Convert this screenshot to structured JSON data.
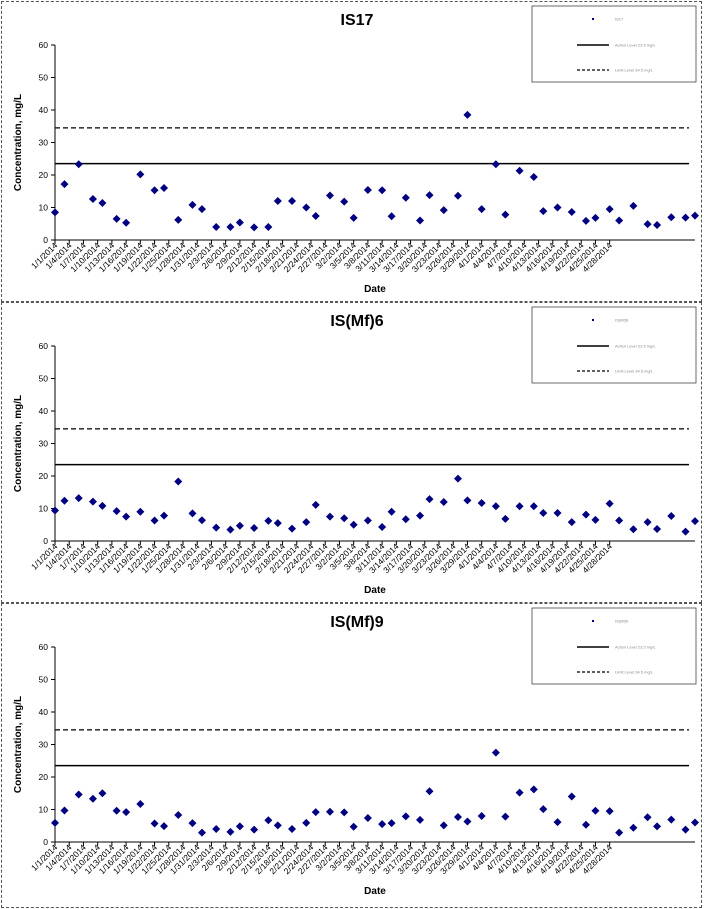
{
  "colors": {
    "marker": "#000080",
    "line": "#000000",
    "border": "#555555"
  },
  "chart_data": [
    {
      "type": "scatter",
      "title": "IS17",
      "xlabel": "Date",
      "ylabel": "Concentration, mg/L",
      "ylim": [
        0,
        60
      ],
      "yticks": [
        "0",
        "10",
        "20",
        "30",
        "40",
        "50",
        "60"
      ],
      "xticks": [
        "1/1/2014",
        "1/4/2014",
        "1/7/2014",
        "1/10/2014",
        "1/13/2014",
        "1/16/2014",
        "1/19/2014",
        "1/22/2014",
        "1/25/2014",
        "1/28/2014",
        "1/31/2014",
        "2/3/2014",
        "2/6/2014",
        "2/9/2014",
        "2/12/2014",
        "2/15/2014",
        "2/18/2014",
        "2/21/2014",
        "2/24/2014",
        "2/27/2014",
        "3/2/2014",
        "3/5/2014",
        "3/8/2014",
        "3/11/2014",
        "3/14/2014",
        "3/17/2014",
        "3/20/2014",
        "3/23/2014",
        "3/26/2014",
        "3/29/2014",
        "4/1/2014",
        "4/4/2014",
        "4/7/2014",
        "4/10/2014",
        "4/13/2014",
        "4/16/2014",
        "4/19/2014",
        "4/22/2014",
        "4/25/2014",
        "4/28/2014"
      ],
      "reference_lines": [
        {
          "y": 23.5,
          "style": "solid"
        },
        {
          "y": 34.5,
          "style": "dashed"
        }
      ],
      "legend": {
        "placement": "top-right",
        "entries": [
          "IS17",
          "Action Level 23.5 mg/L",
          "Limit Level 34.5 mg/L"
        ]
      },
      "series": [
        {
          "name": "IS17",
          "points": [
            [
              "1/1/2014",
              8.5
            ],
            [
              "1/3/2014",
              17.2
            ],
            [
              "1/6/2014",
              23.3
            ],
            [
              "1/9/2014",
              12.6
            ],
            [
              "1/11/2014",
              11.4
            ],
            [
              "1/14/2014",
              6.5
            ],
            [
              "1/16/2014",
              5.3
            ],
            [
              "1/19/2014",
              20.2
            ],
            [
              "1/22/2014",
              15.3
            ],
            [
              "1/24/2014",
              16.0
            ],
            [
              "1/27/2014",
              6.2
            ],
            [
              "1/30/2014",
              10.8
            ],
            [
              "2/1/2014",
              9.5
            ],
            [
              "2/4/2014",
              4.0
            ],
            [
              "2/7/2014",
              4.0
            ],
            [
              "2/9/2014",
              5.4
            ],
            [
              "2/12/2014",
              3.9
            ],
            [
              "2/15/2014",
              4.0
            ],
            [
              "2/17/2014",
              12.0
            ],
            [
              "2/20/2014",
              12.0
            ],
            [
              "2/23/2014",
              10.0
            ],
            [
              "2/25/2014",
              7.4
            ],
            [
              "2/28/2014",
              13.7
            ],
            [
              "3/3/2014",
              11.8
            ],
            [
              "3/5/2014",
              6.8
            ],
            [
              "3/8/2014",
              15.4
            ],
            [
              "3/11/2014",
              15.3
            ],
            [
              "3/13/2014",
              7.3
            ],
            [
              "3/16/2014",
              13.0
            ],
            [
              "3/19/2014",
              6.0
            ],
            [
              "3/21/2014",
              13.8
            ],
            [
              "3/24/2014",
              9.2
            ],
            [
              "3/27/2014",
              13.6
            ],
            [
              "3/29/2014",
              38.5
            ],
            [
              "4/1/2014",
              9.5
            ],
            [
              "4/4/2014",
              23.3
            ],
            [
              "4/6/2014",
              7.8
            ],
            [
              "4/9/2014",
              21.3
            ],
            [
              "4/12/2014",
              19.4
            ],
            [
              "4/14/2014",
              8.9
            ],
            [
              "4/17/2014",
              10.0
            ],
            [
              "4/20/2014",
              8.6
            ],
            [
              "4/23/2014",
              5.9
            ],
            [
              "4/25/2014",
              6.8
            ],
            [
              "4/28/2014",
              9.5
            ],
            [
              "4/30/2014",
              6.0
            ],
            [
              "5/3/2014",
              10.5
            ],
            [
              "5/6/2014",
              4.9
            ],
            [
              "5/8/2014",
              4.6
            ],
            [
              "5/11/2014",
              7.0
            ],
            [
              "5/14/2014",
              6.9
            ],
            [
              "5/16/2014",
              7.5
            ]
          ]
        }
      ]
    },
    {
      "type": "scatter",
      "title": "IS(Mf)6",
      "xlabel": "Date",
      "ylabel": "Concentration, mg/L",
      "ylim": [
        0,
        60
      ],
      "yticks": [
        "0",
        "10",
        "20",
        "30",
        "40",
        "50",
        "60"
      ],
      "xticks": [
        "1/1/2014",
        "1/4/2014",
        "1/7/2014",
        "1/10/2014",
        "1/13/2014",
        "1/16/2014",
        "1/19/2014",
        "1/22/2014",
        "1/25/2014",
        "1/28/2014",
        "1/31/2014",
        "2/3/2014",
        "2/6/2014",
        "2/9/2014",
        "2/12/2014",
        "2/15/2014",
        "2/18/2014",
        "2/21/2014",
        "2/24/2014",
        "2/27/2014",
        "3/2/2014",
        "3/5/2014",
        "3/8/2014",
        "3/11/2014",
        "3/14/2014",
        "3/17/2014",
        "3/20/2014",
        "3/23/2014",
        "3/26/2014",
        "3/29/2014",
        "4/1/2014",
        "4/4/2014",
        "4/7/2014",
        "4/10/2014",
        "4/13/2014",
        "4/16/2014",
        "4/19/2014",
        "4/22/2014",
        "4/25/2014",
        "4/28/2014"
      ],
      "reference_lines": [
        {
          "y": 23.5,
          "style": "solid"
        },
        {
          "y": 34.5,
          "style": "dashed"
        }
      ],
      "legend": {
        "placement": "top-right",
        "entries": [
          "IS(Mf)6",
          "Action Level 23.5 mg/L",
          "Limit Level 34.5 mg/L"
        ]
      },
      "series": [
        {
          "name": "IS(Mf)6",
          "points": [
            [
              "1/1/2014",
              9.4
            ],
            [
              "1/3/2014",
              12.4
            ],
            [
              "1/6/2014",
              13.2
            ],
            [
              "1/9/2014",
              12.1
            ],
            [
              "1/11/2014",
              10.8
            ],
            [
              "1/14/2014",
              9.2
            ],
            [
              "1/16/2014",
              7.5
            ],
            [
              "1/19/2014",
              9.0
            ],
            [
              "1/22/2014",
              6.3
            ],
            [
              "1/24/2014",
              7.8
            ],
            [
              "1/27/2014",
              18.3
            ],
            [
              "1/30/2014",
              8.5
            ],
            [
              "2/1/2014",
              6.4
            ],
            [
              "2/4/2014",
              4.1
            ],
            [
              "2/7/2014",
              3.5
            ],
            [
              "2/9/2014",
              4.7
            ],
            [
              "2/12/2014",
              4.0
            ],
            [
              "2/15/2014",
              6.2
            ],
            [
              "2/17/2014",
              5.5
            ],
            [
              "2/20/2014",
              3.8
            ],
            [
              "2/23/2014",
              5.8
            ],
            [
              "2/25/2014",
              11.1
            ],
            [
              "2/28/2014",
              7.5
            ],
            [
              "3/3/2014",
              7.0
            ],
            [
              "3/5/2014",
              5.0
            ],
            [
              "3/8/2014",
              6.3
            ],
            [
              "3/11/2014",
              4.3
            ],
            [
              "3/13/2014",
              9.0
            ],
            [
              "3/16/2014",
              6.7
            ],
            [
              "3/19/2014",
              7.8
            ],
            [
              "3/21/2014",
              12.9
            ],
            [
              "3/24/2014",
              12.0
            ],
            [
              "3/27/2014",
              19.2
            ],
            [
              "3/29/2014",
              12.5
            ],
            [
              "4/1/2014",
              11.7
            ],
            [
              "4/4/2014",
              10.7
            ],
            [
              "4/6/2014",
              6.8
            ],
            [
              "4/9/2014",
              10.7
            ],
            [
              "4/12/2014",
              10.7
            ],
            [
              "4/14/2014",
              8.6
            ],
            [
              "4/17/2014",
              8.6
            ],
            [
              "4/20/2014",
              5.8
            ],
            [
              "4/23/2014",
              8.1
            ],
            [
              "4/25/2014",
              6.5
            ],
            [
              "4/28/2014",
              11.5
            ],
            [
              "4/30/2014",
              6.3
            ],
            [
              "5/3/2014",
              3.6
            ],
            [
              "5/6/2014",
              5.8
            ],
            [
              "5/8/2014",
              3.7
            ],
            [
              "5/11/2014",
              7.7
            ],
            [
              "5/14/2014",
              2.9
            ],
            [
              "5/16/2014",
              6.1
            ]
          ]
        }
      ]
    },
    {
      "type": "scatter",
      "title": "IS(Mf)9",
      "xlabel": "Date",
      "ylabel": "Concentration, mg/L",
      "ylim": [
        0,
        60
      ],
      "yticks": [
        "0",
        "10",
        "20",
        "30",
        "40",
        "50",
        "60"
      ],
      "xticks": [
        "1/1/2014",
        "1/4/2014",
        "1/7/2014",
        "1/10/2014",
        "1/13/2014",
        "1/16/2014",
        "1/19/2014",
        "1/22/2014",
        "1/25/2014",
        "1/28/2014",
        "1/31/2014",
        "2/3/2014",
        "2/6/2014",
        "2/9/2014",
        "2/12/2014",
        "2/15/2014",
        "2/18/2014",
        "2/21/2014",
        "2/24/2014",
        "2/27/2014",
        "3/2/2014",
        "3/5/2014",
        "3/8/2014",
        "3/11/2014",
        "3/14/2014",
        "3/17/2014",
        "3/20/2014",
        "3/23/2014",
        "3/26/2014",
        "3/29/2014",
        "4/1/2014",
        "4/4/2014",
        "4/7/2014",
        "4/10/2014",
        "4/13/2014",
        "4/16/2014",
        "4/19/2014",
        "4/22/2014",
        "4/25/2014",
        "4/28/2014"
      ],
      "reference_lines": [
        {
          "y": 23.5,
          "style": "solid"
        },
        {
          "y": 34.5,
          "style": "dashed"
        }
      ],
      "legend": {
        "placement": "top-right",
        "entries": [
          "IS(Mf)9",
          "Action Level 23.5 mg/L",
          "Limit Level 34.5 mg/L"
        ]
      },
      "series": [
        {
          "name": "IS(Mf)9",
          "points": [
            [
              "1/1/2014",
              5.9
            ],
            [
              "1/3/2014",
              9.7
            ],
            [
              "1/6/2014",
              14.6
            ],
            [
              "1/9/2014",
              13.3
            ],
            [
              "1/11/2014",
              15.0
            ],
            [
              "1/14/2014",
              9.6
            ],
            [
              "1/16/2014",
              9.2
            ],
            [
              "1/19/2014",
              11.7
            ],
            [
              "1/22/2014",
              5.7
            ],
            [
              "1/24/2014",
              4.9
            ],
            [
              "1/27/2014",
              8.3
            ],
            [
              "1/30/2014",
              5.8
            ],
            [
              "2/1/2014",
              2.9
            ],
            [
              "2/4/2014",
              4.0
            ],
            [
              "2/7/2014",
              3.1
            ],
            [
              "2/9/2014",
              4.8
            ],
            [
              "2/12/2014",
              3.8
            ],
            [
              "2/15/2014",
              6.7
            ],
            [
              "2/17/2014",
              5.1
            ],
            [
              "2/20/2014",
              4.0
            ],
            [
              "2/23/2014",
              5.9
            ],
            [
              "2/25/2014",
              9.2
            ],
            [
              "2/28/2014",
              9.3
            ],
            [
              "3/3/2014",
              9.1
            ],
            [
              "3/5/2014",
              4.7
            ],
            [
              "3/8/2014",
              7.4
            ],
            [
              "3/11/2014",
              5.5
            ],
            [
              "3/13/2014",
              5.8
            ],
            [
              "3/16/2014",
              7.9
            ],
            [
              "3/19/2014",
              6.8
            ],
            [
              "3/21/2014",
              15.6
            ],
            [
              "3/24/2014",
              5.1
            ],
            [
              "3/27/2014",
              7.7
            ],
            [
              "3/29/2014",
              6.3
            ],
            [
              "4/1/2014",
              8.0
            ],
            [
              "4/4/2014",
              27.5
            ],
            [
              "4/6/2014",
              7.8
            ],
            [
              "4/9/2014",
              15.2
            ],
            [
              "4/12/2014",
              16.2
            ],
            [
              "4/14/2014",
              10.1
            ],
            [
              "4/17/2014",
              6.1
            ],
            [
              "4/20/2014",
              14.0
            ],
            [
              "4/23/2014",
              5.3
            ],
            [
              "4/25/2014",
              9.6
            ],
            [
              "4/28/2014",
              9.5
            ],
            [
              "4/30/2014",
              2.9
            ],
            [
              "5/3/2014",
              4.4
            ],
            [
              "5/6/2014",
              7.6
            ],
            [
              "5/8/2014",
              4.8
            ],
            [
              "5/11/2014",
              6.9
            ],
            [
              "5/14/2014",
              3.8
            ],
            [
              "5/16/2014",
              6.0
            ]
          ]
        }
      ]
    }
  ]
}
